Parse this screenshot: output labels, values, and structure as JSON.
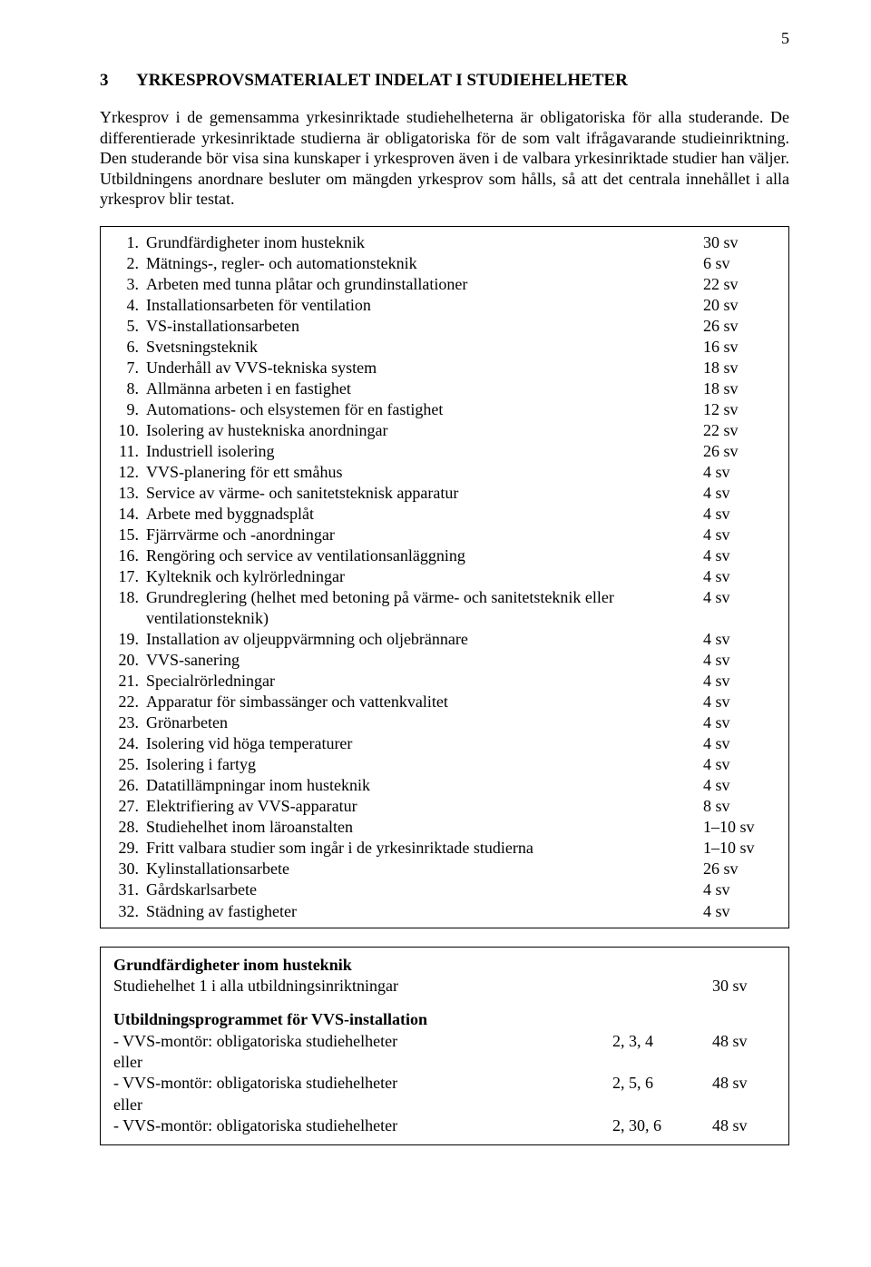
{
  "page_number": "5",
  "heading_number": "3",
  "heading_text": "YRKESPROVSMATERIALET INDELAT I STUDIEHELHETER",
  "intro_paragraph": "Yrkesprov i de gemensamma yrkesinriktade studiehelheterna är obligatoriska för alla studerande. De differentierade yrkesinriktade studierna är obligatoriska för de som valt ifrågavarande studieinriktning. Den studerande bör visa sina kunskaper i yrkesproven även i de valbara yrkesinriktade studier han väljer. Utbildningens anordnare besluter om mängden yrkesprov som hålls, så att det centrala innehållet i alla yrkesprov blir testat.",
  "list": [
    {
      "n": "1.",
      "label": "Grundfärdigheter inom husteknik",
      "val": "30 sv"
    },
    {
      "n": "2.",
      "label": "Mätnings-, regler- och automationsteknik",
      "val": "  6 sv"
    },
    {
      "n": "3.",
      "label": "Arbeten med tunna plåtar och grundinstallationer",
      "val": "22 sv"
    },
    {
      "n": "4.",
      "label": "Installationsarbeten för ventilation",
      "val": "20 sv"
    },
    {
      "n": "5.",
      "label": "VS-installationsarbeten",
      "val": "26 sv"
    },
    {
      "n": "6.",
      "label": "Svetsningsteknik",
      "val": "16 sv"
    },
    {
      "n": "7.",
      "label": "Underhåll av VVS-tekniska system",
      "val": "18 sv"
    },
    {
      "n": "8.",
      "label": "Allmänna arbeten i en fastighet",
      "val": "18 sv"
    },
    {
      "n": "9.",
      "label": "Automations- och elsystemen för en fastighet",
      "val": "12 sv"
    },
    {
      "n": "10.",
      "label": "Isolering av hustekniska anordningar",
      "val": "22 sv"
    },
    {
      "n": "11.",
      "label": "Industriell isolering",
      "val": "26 sv"
    },
    {
      "n": "12.",
      "label": "VVS-planering för ett småhus",
      "val": "4 sv"
    },
    {
      "n": "13.",
      "label": "Service av värme- och sanitetsteknisk apparatur",
      "val": "4 sv"
    },
    {
      "n": "14.",
      "label": "Arbete med byggnadsplåt",
      "val": "4 sv"
    },
    {
      "n": "15.",
      "label": "Fjärrvärme och -anordningar",
      "val": "4 sv"
    },
    {
      "n": "16.",
      "label": "Rengöring och service av ventilationsanläggning",
      "val": "4 sv"
    },
    {
      "n": "17.",
      "label": "Kylteknik och kylrörledningar",
      "val": "4 sv"
    },
    {
      "n": "18.",
      "label": "Grundreglering (helhet med betoning på värme- och sanitetsteknik eller ventilationsteknik)",
      "val": "4 sv"
    },
    {
      "n": "19.",
      "label": "Installation av oljeuppvärmning och oljebrännare",
      "val": "4 sv"
    },
    {
      "n": "20.",
      "label": "VVS-sanering",
      "val": "4 sv"
    },
    {
      "n": "21.",
      "label": "Specialrörledningar",
      "val": "4 sv"
    },
    {
      "n": "22.",
      "label": "Apparatur för simbassänger och vattenkvalitet",
      "val": "4 sv"
    },
    {
      "n": "23.",
      "label": "Grönarbeten",
      "val": "4 sv"
    },
    {
      "n": "24.",
      "label": "Isolering vid höga temperaturer",
      "val": "4 sv"
    },
    {
      "n": "25.",
      "label": "Isolering i fartyg",
      "val": "4 sv"
    },
    {
      "n": "26.",
      "label": "Datatillämpningar inom husteknik",
      "val": "4 sv"
    },
    {
      "n": "27.",
      "label": "Elektrifiering av VVS-apparatur",
      "val": "8 sv"
    },
    {
      "n": "28.",
      "label": "Studiehelhet inom läroanstalten",
      "val": "1–10 sv"
    },
    {
      "n": "29.",
      "label": "Fritt valbara studier som ingår i de yrkesinriktade studierna",
      "val": "1–10 sv"
    },
    {
      "n": "30.",
      "label": "Kylinstallationsarbete",
      "val": "26 sv"
    },
    {
      "n": "31.",
      "label": "Gårdskarlsarbete",
      "val": " 4 sv"
    },
    {
      "n": "32.",
      "label": "Städning av fastigheter",
      "val": " 4 sv"
    }
  ],
  "box2": {
    "title": "Grundfärdigheter inom husteknik",
    "subtitle_row": {
      "c1": "Studiehelhet 1 i alla utbildningsinriktningar",
      "c2": "",
      "c3": "30 sv"
    },
    "section_heading": "Utbildningsprogrammet för VVS-installation",
    "rows": [
      {
        "c1": "- VVS-montör: obligatoriska studiehelheter",
        "c2": "2, 3, 4",
        "c3": "48 sv"
      },
      {
        "c1": "eller",
        "c2": "",
        "c3": ""
      },
      {
        "c1": "- VVS-montör: obligatoriska studiehelheter",
        "c2": "2, 5, 6",
        "c3": "48 sv"
      },
      {
        "c1": "eller",
        "c2": "",
        "c3": ""
      },
      {
        "c1": "- VVS-montör: obligatoriska studiehelheter",
        "c2": "2, 30, 6",
        "c3": "48 sv"
      }
    ]
  }
}
